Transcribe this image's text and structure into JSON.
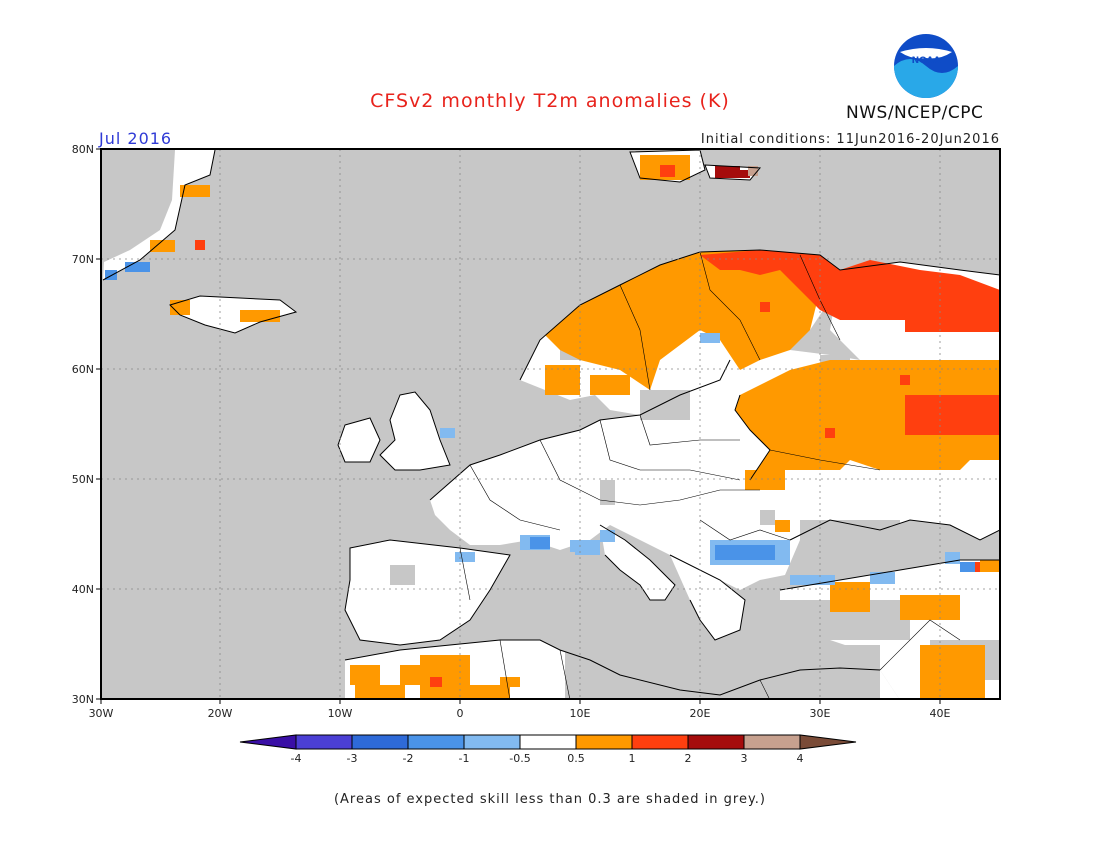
{
  "title": "CFSv2 monthly T2m anomalies (K)",
  "forecast_month": "Jul 2016",
  "initial_conditions": "Initial conditions: 11Jun2016-20Jun2016",
  "agency": "NWS/NCEP/CPC",
  "logo_text": "NOAA",
  "footnote": "(Areas of expected skill less than 0.3 are shaded in grey.)",
  "map": {
    "lon_range": [
      -30,
      45
    ],
    "lat_range": [
      30,
      80
    ],
    "lat_labels": [
      "30N",
      "40N",
      "50N",
      "60N",
      "70N",
      "80N"
    ],
    "lon_labels": [
      "30W",
      "20W",
      "10W",
      "0",
      "10E",
      "20E",
      "30E",
      "40E"
    ]
  },
  "colorbar": {
    "labels": [
      "-4",
      "-3",
      "-2",
      "-1",
      "-0.5",
      "0.5",
      "1",
      "2",
      "3",
      "4"
    ],
    "colors": [
      "#3a0fa6",
      "#4b3fd4",
      "#2e6ad8",
      "#4a93e8",
      "#82baf0",
      "#ffffff",
      "#ff9900",
      "#ff3f0f",
      "#a50c0c",
      "#c7a18f",
      "#7a4b37"
    ]
  },
  "colors": {
    "land_grey": "#c7c7c7",
    "warm_light": "#ff9900",
    "warm_mid": "#ff3f0f",
    "warm_dark": "#a50c0c",
    "cool_light": "#82baf0",
    "cool_mid": "#4a93e8"
  }
}
